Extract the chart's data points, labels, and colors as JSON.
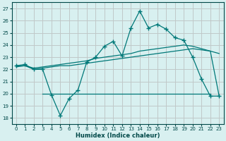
{
  "xlabel": "Humidex (Indice chaleur)",
  "bg_color": "#d8f0f0",
  "grid_color": "#c0c8c8",
  "line_color": "#007878",
  "xlim": [
    -0.5,
    23.5
  ],
  "ylim": [
    17.5,
    27.5
  ],
  "yticks": [
    18,
    19,
    20,
    21,
    22,
    23,
    24,
    25,
    26,
    27
  ],
  "xticks": [
    0,
    1,
    2,
    3,
    4,
    5,
    6,
    7,
    8,
    9,
    10,
    11,
    12,
    13,
    14,
    15,
    16,
    17,
    18,
    19,
    20,
    21,
    22,
    23
  ],
  "line1_x": [
    0,
    1,
    2,
    3,
    4,
    5,
    6,
    7,
    8,
    9,
    10,
    11,
    12,
    13,
    14,
    15,
    16,
    17,
    18,
    19,
    20,
    21,
    22,
    23
  ],
  "line1_y": [
    22.3,
    22.4,
    22.0,
    22.0,
    19.9,
    18.2,
    19.6,
    20.3,
    22.6,
    23.0,
    23.9,
    24.3,
    23.1,
    25.4,
    26.8,
    25.4,
    25.7,
    25.3,
    24.6,
    24.4,
    23.0,
    21.2,
    19.8,
    19.8
  ],
  "line2_x": [
    0,
    1,
    2,
    3,
    4,
    5,
    6,
    7,
    8,
    9,
    10,
    11,
    12,
    13,
    14,
    15,
    16,
    17,
    18,
    19,
    20,
    21,
    22,
    23
  ],
  "line2_y": [
    22.3,
    22.3,
    22.1,
    22.2,
    22.3,
    22.4,
    22.5,
    22.6,
    22.7,
    22.9,
    23.0,
    23.1,
    23.2,
    23.3,
    23.5,
    23.6,
    23.7,
    23.8,
    23.9,
    24.0,
    23.9,
    23.7,
    23.5,
    23.3
  ],
  "line3_x": [
    0,
    1,
    2,
    3,
    4,
    5,
    6,
    7,
    8,
    9,
    10,
    11,
    12,
    13,
    14,
    15,
    16,
    17,
    18,
    19,
    20,
    21,
    22,
    23
  ],
  "line3_y": [
    22.2,
    22.3,
    22.0,
    22.1,
    22.2,
    22.3,
    22.3,
    22.4,
    22.5,
    22.6,
    22.7,
    22.8,
    22.9,
    23.0,
    23.1,
    23.2,
    23.3,
    23.4,
    23.5,
    23.6,
    23.7,
    23.6,
    23.5,
    19.8
  ],
  "line4_x": [
    3,
    4,
    5,
    6,
    7,
    8,
    9,
    10,
    11,
    12,
    13,
    14,
    15,
    16,
    17,
    18,
    19,
    20,
    21,
    22
  ],
  "line4_y": [
    20.0,
    20.0,
    20.0,
    20.0,
    20.0,
    20.0,
    20.0,
    20.0,
    20.0,
    20.0,
    20.0,
    20.0,
    20.0,
    20.0,
    20.0,
    20.0,
    20.0,
    20.0,
    20.0,
    20.0
  ]
}
